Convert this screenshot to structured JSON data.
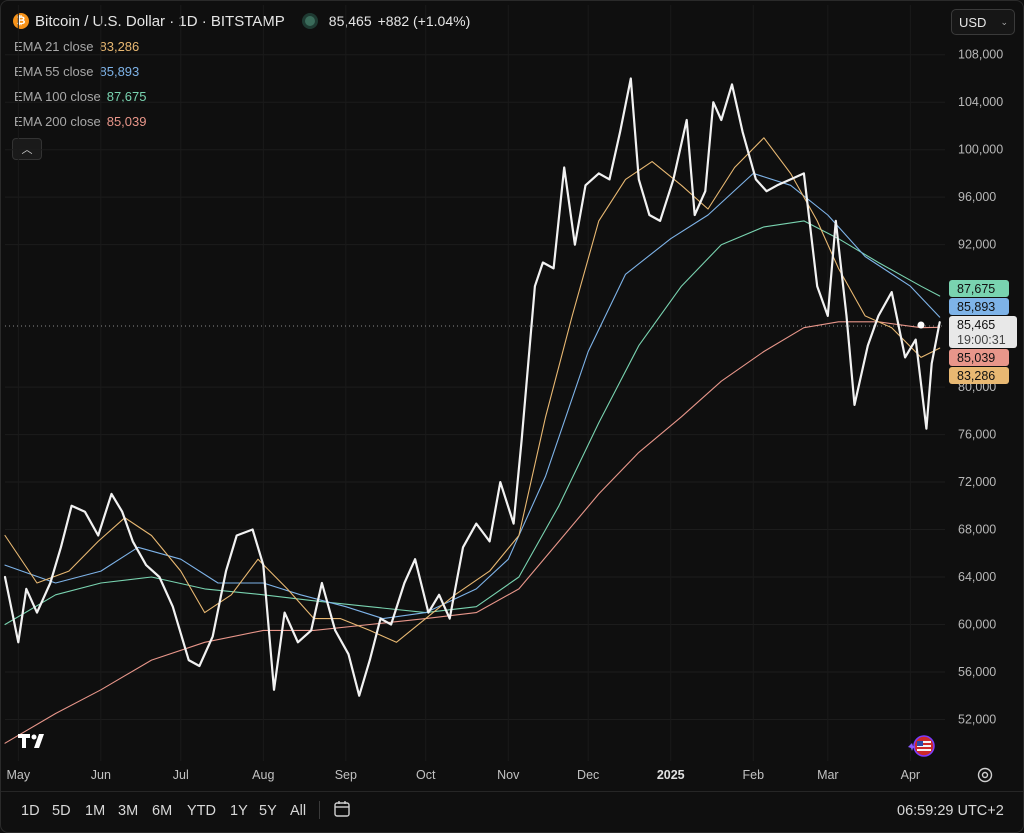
{
  "header": {
    "title": "Bitcoin / U.S. Dollar · 1D · BITSTAMP",
    "price": "85,465",
    "change": "+882 (+1.04%)",
    "currency": "USD",
    "coin_icon": "bitcoin-icon"
  },
  "legend": [
    {
      "label": "EMA 21 close",
      "value": "83,286",
      "color": "#e8b872"
    },
    {
      "label": "EMA 55 close",
      "value": "85,893",
      "color": "#7eb3e8"
    },
    {
      "label": "EMA 100 close",
      "value": "87,675",
      "color": "#79d3b0"
    },
    {
      "label": "EMA 200 close",
      "value": "85,039",
      "color": "#e8968a"
    }
  ],
  "price_tags": {
    "ema100": "87,675",
    "ema55": "85,893",
    "ema200": "85,039",
    "ema21": "83,286",
    "last_price": "85,465",
    "countdown": "19:00:31"
  },
  "timeframes": [
    "1D",
    "5D",
    "1M",
    "3M",
    "6M",
    "YTD",
    "1Y",
    "5Y",
    "All"
  ],
  "clock": "06:59:29 UTC+2",
  "colors": {
    "price": "#f2f2f2",
    "background": "#0f0f0f"
  },
  "chart_data": {
    "type": "line",
    "title": "Bitcoin / U.S. Dollar · 1D · BITSTAMP",
    "yticks": [
      "108,000",
      "104,000",
      "100,000",
      "96,000",
      "92,000",
      "80,000",
      "76,000",
      "72,000",
      "68,000",
      "64,000",
      "60,000",
      "56,000",
      "52,000"
    ],
    "xticks": [
      "May",
      "Jun",
      "Jul",
      "Aug",
      "Sep",
      "Oct",
      "Nov",
      "Dec",
      "2025",
      "Feb",
      "Mar",
      "Apr"
    ],
    "ylim": [
      48500,
      110000
    ],
    "x_start": "2024-04-26",
    "x_end": "2025-04-14",
    "grid": true,
    "series": [
      {
        "name": "BTCUSD",
        "color": "#f2f2f2",
        "width": 2.2,
        "dates": [
          "2024-04-26",
          "2024-05-01",
          "2024-05-04",
          "2024-05-08",
          "2024-05-13",
          "2024-05-17",
          "2024-05-21",
          "2024-05-26",
          "2024-05-31",
          "2024-06-05",
          "2024-06-09",
          "2024-06-13",
          "2024-06-18",
          "2024-06-23",
          "2024-06-28",
          "2024-07-04",
          "2024-07-08",
          "2024-07-13",
          "2024-07-18",
          "2024-07-22",
          "2024-07-28",
          "2024-08-01",
          "2024-08-05",
          "2024-08-09",
          "2024-08-14",
          "2024-08-19",
          "2024-08-23",
          "2024-08-28",
          "2024-09-02",
          "2024-09-06",
          "2024-09-10",
          "2024-09-14",
          "2024-09-18",
          "2024-09-23",
          "2024-09-27",
          "2024-10-02",
          "2024-10-06",
          "2024-10-10",
          "2024-10-15",
          "2024-10-20",
          "2024-10-25",
          "2024-10-29",
          "2024-11-03",
          "2024-11-06",
          "2024-11-11",
          "2024-11-14",
          "2024-11-18",
          "2024-11-22",
          "2024-11-26",
          "2024-11-30",
          "2024-12-05",
          "2024-12-09",
          "2024-12-13",
          "2024-12-17",
          "2024-12-20",
          "2024-12-24",
          "2024-12-28",
          "2025-01-02",
          "2025-01-07",
          "2025-01-10",
          "2025-01-14",
          "2025-01-17",
          "2025-01-20",
          "2025-01-24",
          "2025-01-28",
          "2025-02-02",
          "2025-02-06",
          "2025-02-10",
          "2025-02-15",
          "2025-02-20",
          "2025-02-25",
          "2025-03-01",
          "2025-03-04",
          "2025-03-08",
          "2025-03-11",
          "2025-03-16",
          "2025-03-20",
          "2025-03-25",
          "2025-03-30",
          "2025-04-03",
          "2025-04-07",
          "2025-04-09",
          "2025-04-12"
        ],
        "values": [
          64000,
          58500,
          63000,
          61000,
          63500,
          66500,
          70000,
          69500,
          67500,
          71000,
          69500,
          67000,
          65000,
          64000,
          61500,
          57000,
          56500,
          59000,
          64500,
          67500,
          68000,
          65000,
          54500,
          61000,
          58500,
          59500,
          63500,
          59500,
          57500,
          54000,
          57000,
          60500,
          60000,
          63500,
          65500,
          61000,
          62500,
          60500,
          66500,
          68500,
          67000,
          72000,
          68500,
          75500,
          88500,
          90500,
          90000,
          98500,
          92000,
          97000,
          98000,
          97500,
          101500,
          106000,
          97500,
          94500,
          94000,
          97500,
          102500,
          94500,
          96500,
          104000,
          102500,
          105500,
          101500,
          97500,
          96500,
          97000,
          97500,
          98000,
          88500,
          86000,
          94000,
          86000,
          78500,
          83500,
          86000,
          88000,
          82500,
          84000,
          76500,
          82000,
          85465
        ]
      },
      {
        "name": "EMA 21 close",
        "color": "#e8b872",
        "width": 1.1,
        "dates": [
          "2024-04-26",
          "2024-05-08",
          "2024-05-20",
          "2024-05-31",
          "2024-06-10",
          "2024-06-20",
          "2024-07-01",
          "2024-07-10",
          "2024-07-20",
          "2024-07-30",
          "2024-08-10",
          "2024-08-20",
          "2024-08-30",
          "2024-09-10",
          "2024-09-20",
          "2024-10-01",
          "2024-10-12",
          "2024-10-25",
          "2024-11-05",
          "2024-11-15",
          "2024-11-25",
          "2024-12-05",
          "2024-12-15",
          "2024-12-25",
          "2025-01-05",
          "2025-01-15",
          "2025-01-25",
          "2025-02-05",
          "2025-02-15",
          "2025-02-25",
          "2025-03-05",
          "2025-03-15",
          "2025-03-25",
          "2025-04-05",
          "2025-04-12"
        ],
        "values": [
          67500,
          63500,
          64500,
          67000,
          69000,
          67500,
          64500,
          61000,
          62500,
          65500,
          63000,
          60500,
          60500,
          59500,
          58500,
          60500,
          62500,
          64500,
          67500,
          77500,
          86000,
          94000,
          97500,
          99000,
          97000,
          95000,
          98500,
          101000,
          98000,
          94000,
          90000,
          86000,
          85000,
          82500,
          83286
        ]
      },
      {
        "name": "EMA 55 close",
        "color": "#7eb3e8",
        "width": 1.1,
        "dates": [
          "2024-04-26",
          "2024-05-15",
          "2024-06-01",
          "2024-06-15",
          "2024-07-01",
          "2024-07-15",
          "2024-08-01",
          "2024-08-15",
          "2024-09-01",
          "2024-09-15",
          "2024-10-01",
          "2024-10-20",
          "2024-11-01",
          "2024-11-15",
          "2024-12-01",
          "2024-12-15",
          "2025-01-01",
          "2025-01-15",
          "2025-02-01",
          "2025-02-15",
          "2025-03-01",
          "2025-03-15",
          "2025-04-01",
          "2025-04-12"
        ],
        "values": [
          65000,
          63500,
          64500,
          66500,
          65500,
          63500,
          63500,
          62500,
          61500,
          60500,
          61000,
          63000,
          65500,
          72500,
          83000,
          89500,
          92500,
          94500,
          98000,
          97000,
          94500,
          91000,
          88500,
          85893
        ]
      },
      {
        "name": "EMA 100 close",
        "color": "#79d3b0",
        "width": 1.1,
        "dates": [
          "2024-04-26",
          "2024-05-15",
          "2024-06-01",
          "2024-06-20",
          "2024-07-10",
          "2024-08-01",
          "2024-08-20",
          "2024-09-10",
          "2024-10-01",
          "2024-10-20",
          "2024-11-05",
          "2024-11-20",
          "2024-12-05",
          "2024-12-20",
          "2025-01-05",
          "2025-01-20",
          "2025-02-05",
          "2025-02-20",
          "2025-03-05",
          "2025-03-20",
          "2025-04-05",
          "2025-04-12"
        ],
        "values": [
          60000,
          62500,
          63500,
          64000,
          63000,
          62500,
          62000,
          61500,
          61000,
          61500,
          64000,
          70000,
          77000,
          83500,
          88500,
          92000,
          93500,
          94000,
          92500,
          90500,
          88500,
          87675
        ]
      },
      {
        "name": "EMA 200 close",
        "color": "#e8968a",
        "width": 1.1,
        "dates": [
          "2024-04-26",
          "2024-05-15",
          "2024-06-01",
          "2024-06-20",
          "2024-07-10",
          "2024-08-01",
          "2024-08-20",
          "2024-09-10",
          "2024-10-01",
          "2024-10-20",
          "2024-11-05",
          "2024-11-20",
          "2024-12-05",
          "2024-12-20",
          "2025-01-05",
          "2025-01-20",
          "2025-02-05",
          "2025-02-20",
          "2025-03-05",
          "2025-03-20",
          "2025-04-05",
          "2025-04-12"
        ],
        "values": [
          50000,
          52500,
          54500,
          57000,
          58500,
          59500,
          59500,
          60000,
          60500,
          61000,
          63000,
          67000,
          71000,
          74500,
          77500,
          80500,
          83000,
          85000,
          85500,
          85500,
          85000,
          85039
        ]
      }
    ]
  }
}
